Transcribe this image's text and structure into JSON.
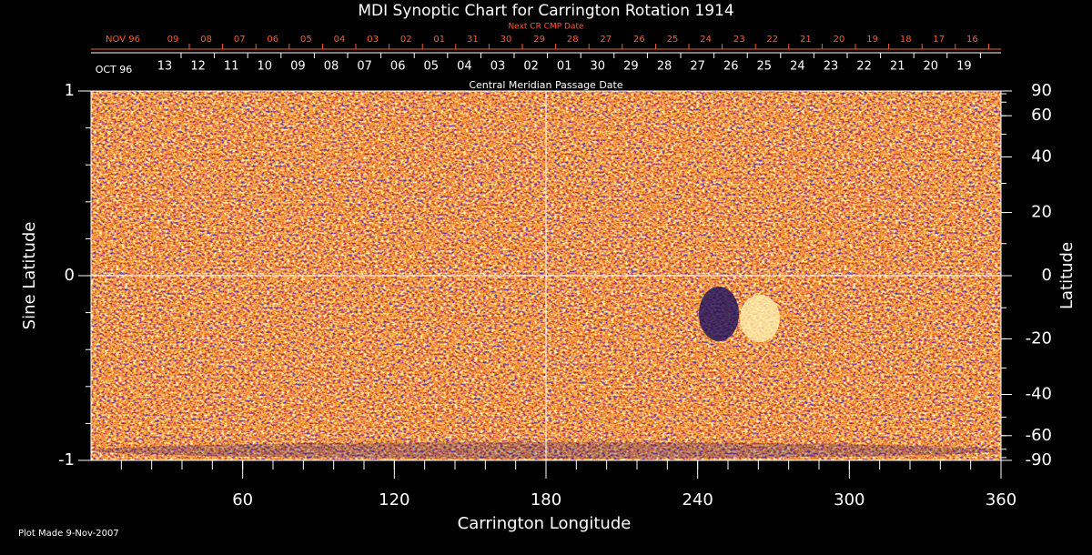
{
  "chart_data": {
    "type": "synoptic",
    "title": "MDI Synoptic Chart for Carrington Rotation 1914",
    "top_axis_title": "Next CR CMP Date",
    "top_categories": [
      "NOV 96",
      "09",
      "08",
      "07",
      "06",
      "05",
      "04",
      "03",
      "02",
      "01",
      "31",
      "30",
      "29",
      "28",
      "27",
      "26",
      "25",
      "24",
      "23",
      "22",
      "21",
      "20",
      "19",
      "18",
      "17",
      "16"
    ],
    "date_categories": [
      "OCT 96",
      "13",
      "12",
      "11",
      "10",
      "09",
      "08",
      "07",
      "06",
      "05",
      "04",
      "03",
      "02",
      "01",
      "30",
      "29",
      "28",
      "27",
      "26",
      "25",
      "24",
      "23",
      "22",
      "21",
      "20",
      "19"
    ],
    "date_axis_title": "Central Meridian Passage Date",
    "xlabel": "Carrington Longitude",
    "ylabel": "Sine Latitude",
    "y2label": "Latitude",
    "xlim": [
      0,
      360
    ],
    "xticks": [
      60,
      120,
      180,
      240,
      300,
      360
    ],
    "xminor_step": 12,
    "ylim": [
      -1,
      1
    ],
    "yticks": [
      -1,
      0,
      1
    ],
    "yminor_step": 0.2,
    "y2lim": [
      -90,
      90
    ],
    "y2ticks": [
      90,
      60,
      40,
      20,
      0,
      -20,
      -40,
      -60,
      -90
    ],
    "y2minor_step": 10,
    "y2_scale": "sine",
    "crosshair": {
      "x": 180,
      "y": 0
    }
  },
  "footer": "Plot Made  9-Nov-2007"
}
